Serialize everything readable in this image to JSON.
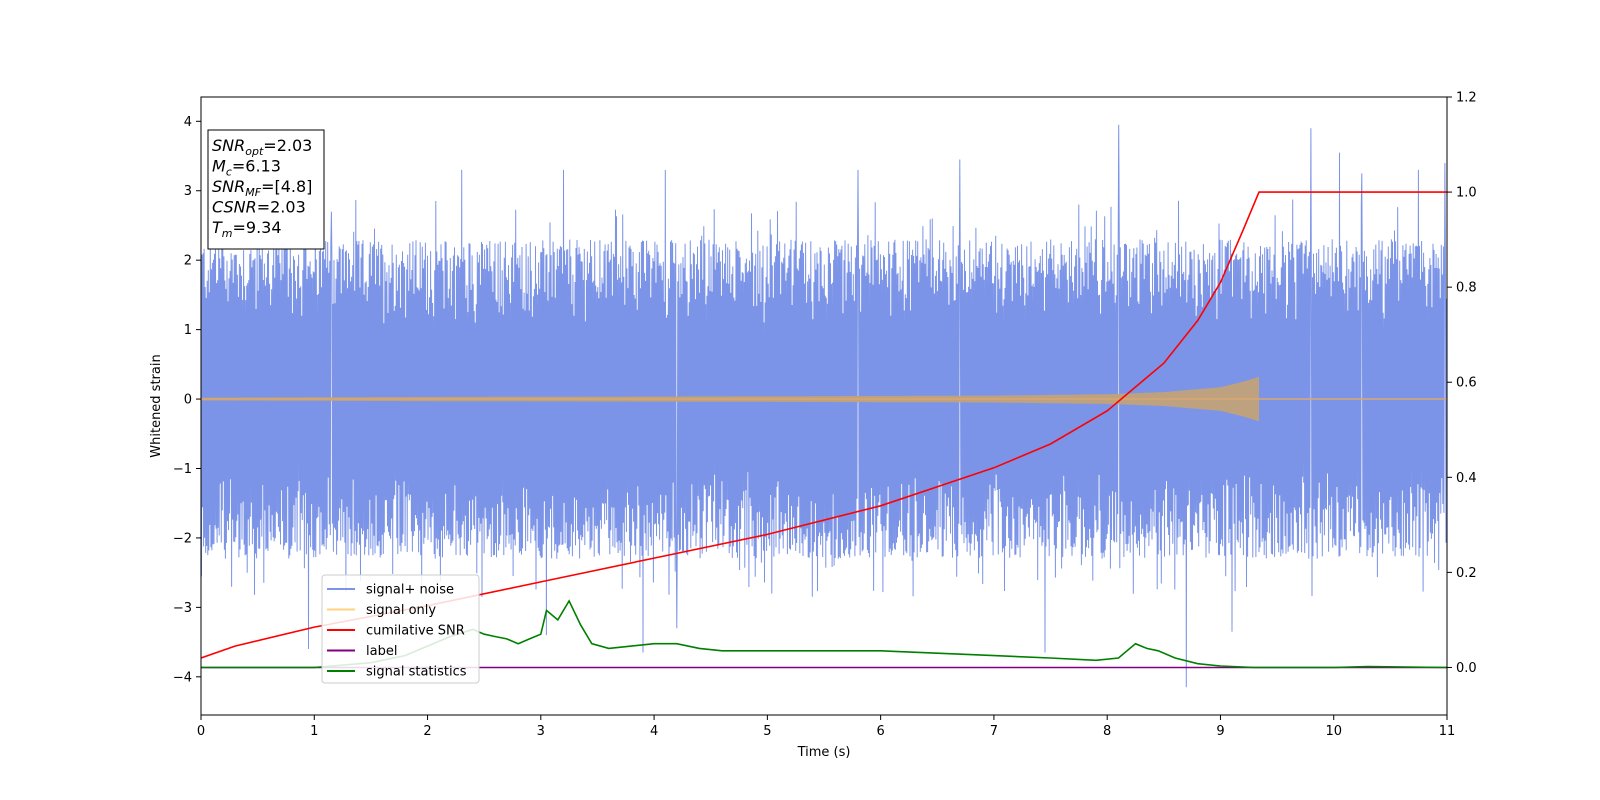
{
  "chart_data": {
    "type": "line",
    "title": "",
    "xlabel": "Time (s)",
    "ylabel": "Whitened strain",
    "xlim": [
      0,
      11
    ],
    "ylim": [
      -4.55,
      4.35
    ],
    "y2lim": [
      -0.1,
      1.2
    ],
    "x_ticks": [
      0,
      1,
      2,
      3,
      4,
      5,
      6,
      7,
      8,
      9,
      10,
      11
    ],
    "y_ticks": [
      4,
      3,
      2,
      1,
      0,
      -1,
      -2,
      -3,
      -4
    ],
    "y2_ticks": [
      1.2,
      1.0,
      0.8,
      0.6,
      0.4,
      0.2,
      0.0
    ],
    "grid": false,
    "legend_position": "lower-left",
    "annotation": {
      "lines": [
        {
          "name": "SNR",
          "sub": "opt",
          "value": "=2.03"
        },
        {
          "name": "M",
          "sub": "c",
          "value": "=6.13"
        },
        {
          "name": "SNR",
          "sub": "MF",
          "value": "=[4.8]"
        },
        {
          "name": "CSNR",
          "sub": "",
          "value": "=2.03"
        },
        {
          "name": "T",
          "sub": "m",
          "value": "=9.34"
        }
      ]
    },
    "series": [
      {
        "name": "signal+ noise",
        "color": "#7b94e8",
        "axis": "left",
        "sample_rate": 2048,
        "amplitude_typical": 2.3,
        "peaks": [
          {
            "x": 0.95,
            "y": -3.6
          },
          {
            "x": 1.15,
            "y": 2.7
          },
          {
            "x": 2.3,
            "y": 3.3
          },
          {
            "x": 3.05,
            "y": -3.4
          },
          {
            "x": 3.2,
            "y": 3.3
          },
          {
            "x": 3.9,
            "y": -3.65
          },
          {
            "x": 4.1,
            "y": 3.3
          },
          {
            "x": 4.2,
            "y": -3.3
          },
          {
            "x": 5.8,
            "y": 3.3
          },
          {
            "x": 6.7,
            "y": 3.45
          },
          {
            "x": 7.45,
            "y": -3.65
          },
          {
            "x": 8.1,
            "y": 3.95
          },
          {
            "x": 8.7,
            "y": -4.15
          },
          {
            "x": 9.1,
            "y": -3.35
          },
          {
            "x": 9.8,
            "y": 3.9
          },
          {
            "x": 10.05,
            "y": 3.55
          },
          {
            "x": 10.25,
            "y": 3.25
          },
          {
            "x": 10.75,
            "y": 3.3
          },
          {
            "x": 10.98,
            "y": 3.4
          }
        ]
      },
      {
        "name": "signal only",
        "color": "#ffd27f",
        "axis": "left",
        "envelope_x": [
          0,
          2,
          5,
          7,
          8,
          8.5,
          9,
          9.2,
          9.34,
          11
        ],
        "envelope_y": [
          0.02,
          0.03,
          0.04,
          0.05,
          0.07,
          0.1,
          0.17,
          0.25,
          0.32,
          0
        ]
      },
      {
        "name": "cumilative SNR",
        "color": "#ff0000",
        "axis": "right",
        "x": [
          0,
          0.3,
          1,
          2,
          3,
          4,
          5,
          6,
          7,
          7.5,
          8,
          8.5,
          8.8,
          9.0,
          9.2,
          9.34,
          11
        ],
        "y": [
          0.02,
          0.045,
          0.085,
          0.13,
          0.18,
          0.23,
          0.28,
          0.34,
          0.42,
          0.47,
          0.54,
          0.64,
          0.73,
          0.81,
          0.92,
          1.0,
          1.0
        ]
      },
      {
        "name": "label",
        "color": "#800080",
        "axis": "right",
        "x": [
          0,
          11
        ],
        "y": [
          0.0,
          0.0
        ]
      },
      {
        "name": "signal statistics",
        "color": "#008000",
        "axis": "right",
        "x": [
          0,
          0.5,
          1.0,
          1.5,
          1.8,
          2.0,
          2.2,
          2.4,
          2.5,
          2.6,
          2.7,
          2.8,
          2.9,
          3.0,
          3.05,
          3.15,
          3.25,
          3.35,
          3.45,
          3.6,
          3.8,
          4.0,
          4.2,
          4.4,
          4.6,
          5.0,
          5.5,
          6.0,
          6.5,
          7.0,
          7.5,
          7.9,
          8.1,
          8.25,
          8.35,
          8.45,
          8.6,
          8.8,
          9.0,
          9.3,
          10.0,
          10.3,
          11.0
        ],
        "y": [
          0.0,
          0.0,
          0.0,
          0.01,
          0.025,
          0.045,
          0.065,
          0.08,
          0.07,
          0.065,
          0.06,
          0.05,
          0.06,
          0.07,
          0.12,
          0.1,
          0.14,
          0.09,
          0.05,
          0.04,
          0.045,
          0.05,
          0.05,
          0.04,
          0.035,
          0.035,
          0.035,
          0.035,
          0.03,
          0.025,
          0.02,
          0.015,
          0.02,
          0.05,
          0.04,
          0.035,
          0.02,
          0.008,
          0.003,
          0.0,
          0.0,
          0.002,
          0.0
        ]
      }
    ]
  }
}
